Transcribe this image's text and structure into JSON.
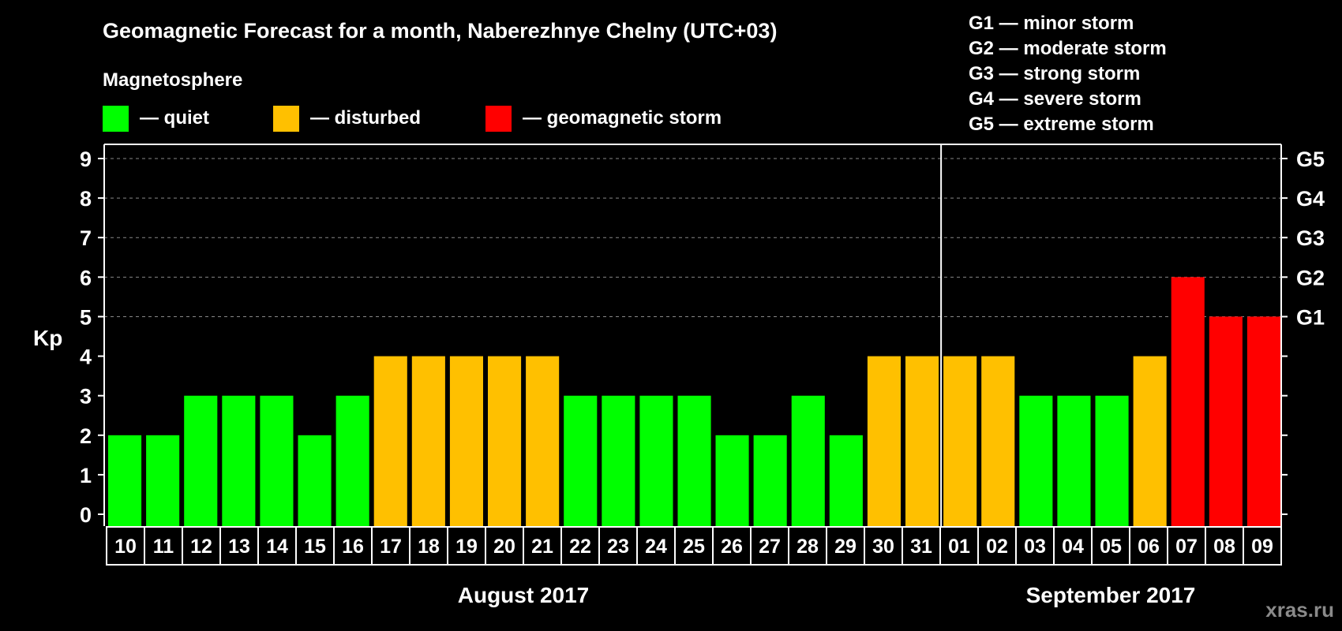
{
  "chart_data": {
    "type": "bar",
    "title": "Geomagnetic Forecast for a month, Naberezhnye Chelny (UTC+03)",
    "ylabel": "Kp",
    "ylim": [
      0,
      9
    ],
    "yticks": [
      "0",
      "1",
      "2",
      "3",
      "4",
      "5",
      "6",
      "7",
      "8",
      "9"
    ],
    "legend_heading": "Magnetosphere",
    "legend": [
      {
        "label": "— quiet",
        "color": "#00ff00"
      },
      {
        "label": "— disturbed",
        "color": "#ffc000"
      },
      {
        "label": "— geomagnetic storm",
        "color": "#ff0000"
      }
    ],
    "storm_scale": [
      {
        "level": "G1",
        "kp": 5,
        "description": "G1 — minor storm"
      },
      {
        "level": "G2",
        "kp": 6,
        "description": "G2 — moderate storm"
      },
      {
        "level": "G3",
        "kp": 7,
        "description": "G3 — strong storm"
      },
      {
        "level": "G4",
        "kp": 8,
        "description": "G4 — severe storm"
      },
      {
        "level": "G5",
        "kp": 9,
        "description": "G5 — extreme storm"
      }
    ],
    "categories": [
      "10",
      "11",
      "12",
      "13",
      "14",
      "15",
      "16",
      "17",
      "18",
      "19",
      "20",
      "21",
      "22",
      "23",
      "24",
      "25",
      "26",
      "27",
      "28",
      "29",
      "30",
      "31",
      "01",
      "02",
      "03",
      "04",
      "05",
      "06",
      "07",
      "08",
      "09"
    ],
    "values": [
      2,
      2,
      3,
      3,
      3,
      2,
      3,
      4,
      4,
      4,
      4,
      4,
      3,
      3,
      3,
      3,
      2,
      2,
      3,
      2,
      4,
      4,
      4,
      4,
      3,
      3,
      3,
      4,
      6,
      5,
      5
    ],
    "months": [
      {
        "label": "August 2017",
        "start_index": 0,
        "count": 22
      },
      {
        "label": "September 2017",
        "start_index": 22,
        "count": 9
      }
    ],
    "month_divider_after_index": 21,
    "color_thresholds": {
      "disturbed_from": 4,
      "storm_from": 5
    },
    "colors": {
      "quiet": "#00ff00",
      "disturbed": "#ffc000",
      "storm": "#ff0000",
      "background": "#000000",
      "axis": "#ffffff",
      "grid": "#888888"
    }
  },
  "watermark": "xras.ru"
}
